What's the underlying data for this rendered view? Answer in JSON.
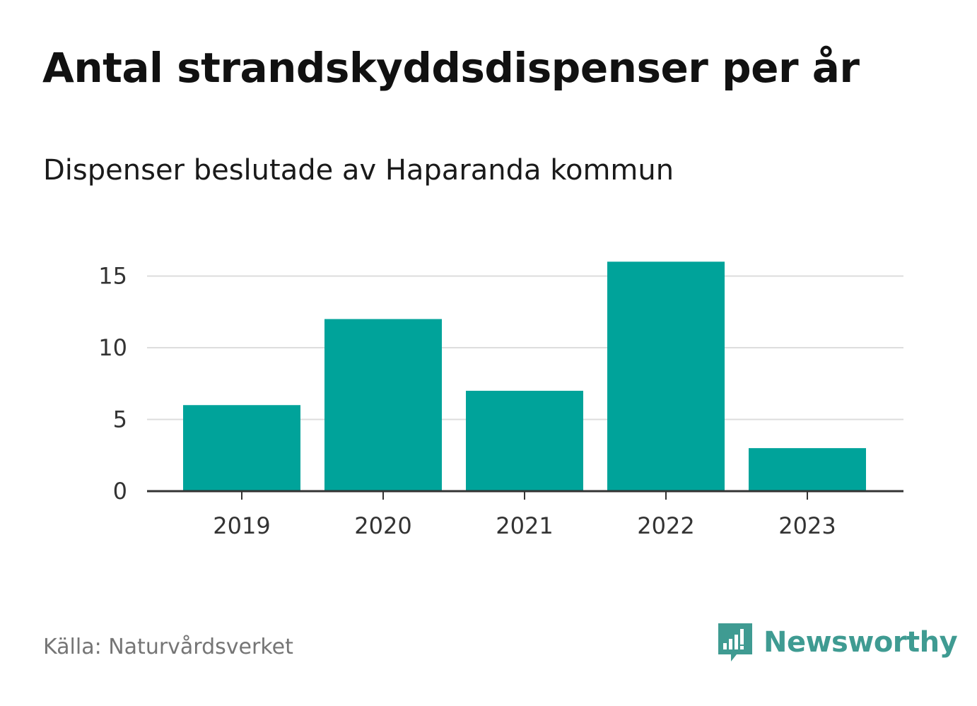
{
  "chart_data": {
    "type": "bar",
    "title": "Antal strandskyddsdispenser per år",
    "subtitle": "Dispenser beslutade av Haparanda kommun",
    "categories": [
      "2019",
      "2020",
      "2021",
      "2022",
      "2023"
    ],
    "values": [
      6,
      12,
      7,
      16,
      3
    ],
    "yticks": [
      "0",
      "5",
      "10",
      "15"
    ],
    "ylim": [
      0,
      17
    ],
    "xlabel": "",
    "ylabel": "",
    "grid": true,
    "bar_color": "#00a39a"
  },
  "footer": {
    "source": "Källa: Naturvårdsverket",
    "brand": "Newsworthy",
    "brand_icon": "newsworthy-logo-icon",
    "brand_color": "#3f9b92"
  }
}
